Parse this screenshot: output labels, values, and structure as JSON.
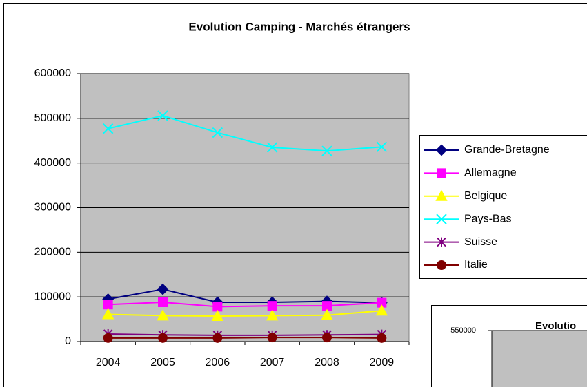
{
  "chart_data": [
    {
      "type": "line",
      "title": "Evolution Camping - Marchés étrangers",
      "categories": [
        "2004",
        "2005",
        "2006",
        "2007",
        "2008",
        "2009"
      ],
      "ylim": [
        0,
        600000
      ],
      "yticks": [
        0,
        100000,
        200000,
        300000,
        400000,
        500000,
        600000
      ],
      "grid": true,
      "background": "#c0c0c0",
      "legend": "right",
      "series": [
        {
          "name": "Grande-Bretagne",
          "color": "#000080",
          "marker": "diamond",
          "values": [
            95000,
            117000,
            88000,
            88000,
            90000,
            87000
          ]
        },
        {
          "name": "Allemagne",
          "color": "#ff00ff",
          "marker": "square",
          "values": [
            83000,
            88000,
            78000,
            80000,
            80000,
            87000
          ]
        },
        {
          "name": "Belgique",
          "color": "#ffff00",
          "marker": "triangle",
          "values": [
            61000,
            58000,
            57000,
            58000,
            59000,
            69000
          ]
        },
        {
          "name": "Pays-Bas",
          "color": "#00ffff",
          "marker": "x",
          "values": [
            477000,
            506000,
            468000,
            435000,
            427000,
            436000
          ]
        },
        {
          "name": "Suisse",
          "color": "#800080",
          "marker": "star",
          "values": [
            17000,
            15000,
            14000,
            14000,
            15000,
            16000
          ]
        },
        {
          "name": "Italie",
          "color": "#800000",
          "marker": "circle",
          "values": [
            8000,
            8000,
            8000,
            9000,
            9000,
            8000
          ]
        }
      ]
    },
    {
      "type": "line",
      "title": "Evolutio",
      "yticks": [
        550000
      ],
      "background": "#c0c0c0"
    }
  ]
}
